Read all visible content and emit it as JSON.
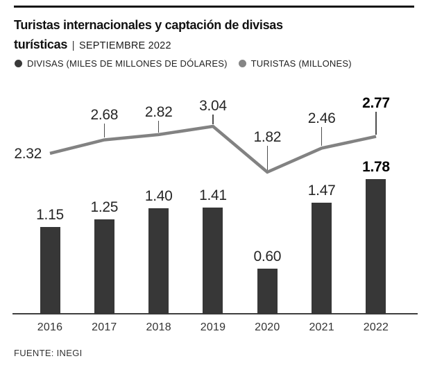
{
  "header": {
    "title_line1": "Turistas internacionales y captación de divisas",
    "title_line2": "turísticas",
    "subtitle_separator": "|",
    "subtitle": "SEPTIEMBRE 2022"
  },
  "legend": [
    {
      "label": "DIVISAS (MILES DE MILLONES DE DÓLARES)",
      "color": "#3a3a3a"
    },
    {
      "label": "TURISTAS (MILLONES)",
      "color": "#858585"
    }
  ],
  "chart_data": {
    "type": "combo",
    "categories": [
      "2016",
      "2017",
      "2018",
      "2019",
      "2020",
      "2021",
      "2022"
    ],
    "series": [
      {
        "name": "DIVISAS (MILES DE MILLONES DE DÓLARES)",
        "type": "bar",
        "color": "#373737",
        "values": [
          1.15,
          1.25,
          1.4,
          1.41,
          0.6,
          1.47,
          1.78
        ],
        "labels": [
          "1.15",
          "1.25",
          "1.40",
          "1.41",
          "0.60",
          "1.47",
          "1.78"
        ]
      },
      {
        "name": "TURISTAS (MILLONES)",
        "type": "line",
        "color": "#828282",
        "values": [
          2.32,
          2.68,
          2.82,
          3.04,
          1.82,
          2.46,
          2.77
        ],
        "labels": [
          "2.32",
          "2.68",
          "2.82",
          "3.04",
          "1.82",
          "2.46",
          "2.77"
        ]
      }
    ],
    "title": "Turistas internacionales y captación de divisas turísticas | SEPTIEMBRE 2022",
    "xlabel": "",
    "ylabel": "",
    "highlight_category": "2022",
    "value_labels_shown": true,
    "grid": false,
    "legend_position": "top"
  },
  "footer": {
    "source": "FUENTE: INEGI"
  }
}
